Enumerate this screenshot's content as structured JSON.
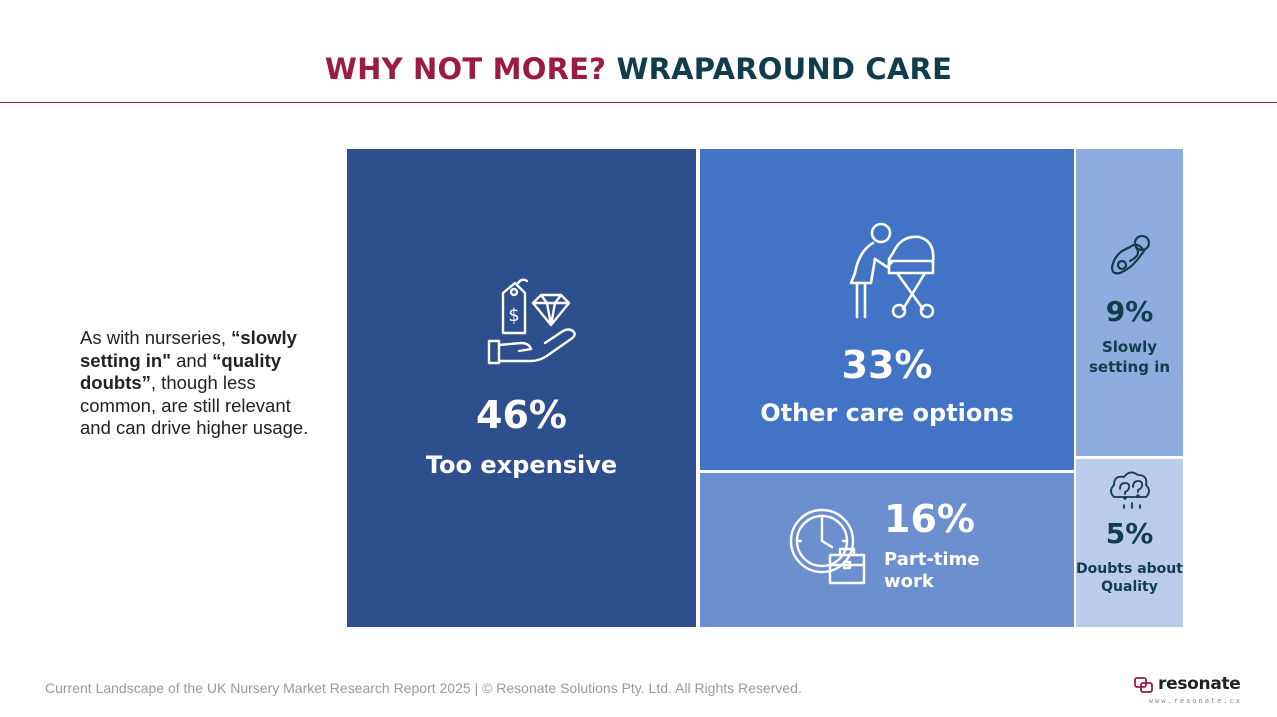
{
  "header": {
    "title_part1": "WHY NOT MORE?",
    "title_part2": "WRAPAROUND CARE",
    "accent_color": "#9b1b42",
    "title_dark_color": "#0f3d4c"
  },
  "side_note": {
    "t1": "As with nurseries, ",
    "b1": "“slowly setting in\"",
    "t2": " and ",
    "b2": "“quality doubts”",
    "t3": ", though less common, are still relevant and can drive higher usage."
  },
  "chart_data": {
    "type": "treemap",
    "items": [
      {
        "label": "Too expensive",
        "value": 46,
        "value_label": "46%",
        "icon": "price-tag-diamond-hand-icon",
        "color": "#2d4f8d"
      },
      {
        "label": "Other care options",
        "value": 33,
        "value_label": "33%",
        "icon": "person-with-pram-icon",
        "color": "#4373c5"
      },
      {
        "label": "Part-time work",
        "value": 16,
        "value_label": "16%",
        "icon": "clock-briefcase-icon",
        "color": "#6c8fd0"
      },
      {
        "label": "Slowly setting in",
        "value": 9,
        "value_label": "9%",
        "icon": "pacifier-icon",
        "color": "#8eacdd"
      },
      {
        "label": "Doubts about Quality",
        "value": 5,
        "value_label": "5%",
        "icon": "question-cloud-icon",
        "color": "#bacbeb"
      }
    ]
  },
  "footer": {
    "text": "Current Landscape of the UK Nursery Market Research Report 2025 | © Resonate Solutions Pty. Ltd. All Rights Reserved."
  },
  "brand": {
    "name": "resonate",
    "url": "www.resonate.cx",
    "icon": "resonate-logo-icon"
  }
}
